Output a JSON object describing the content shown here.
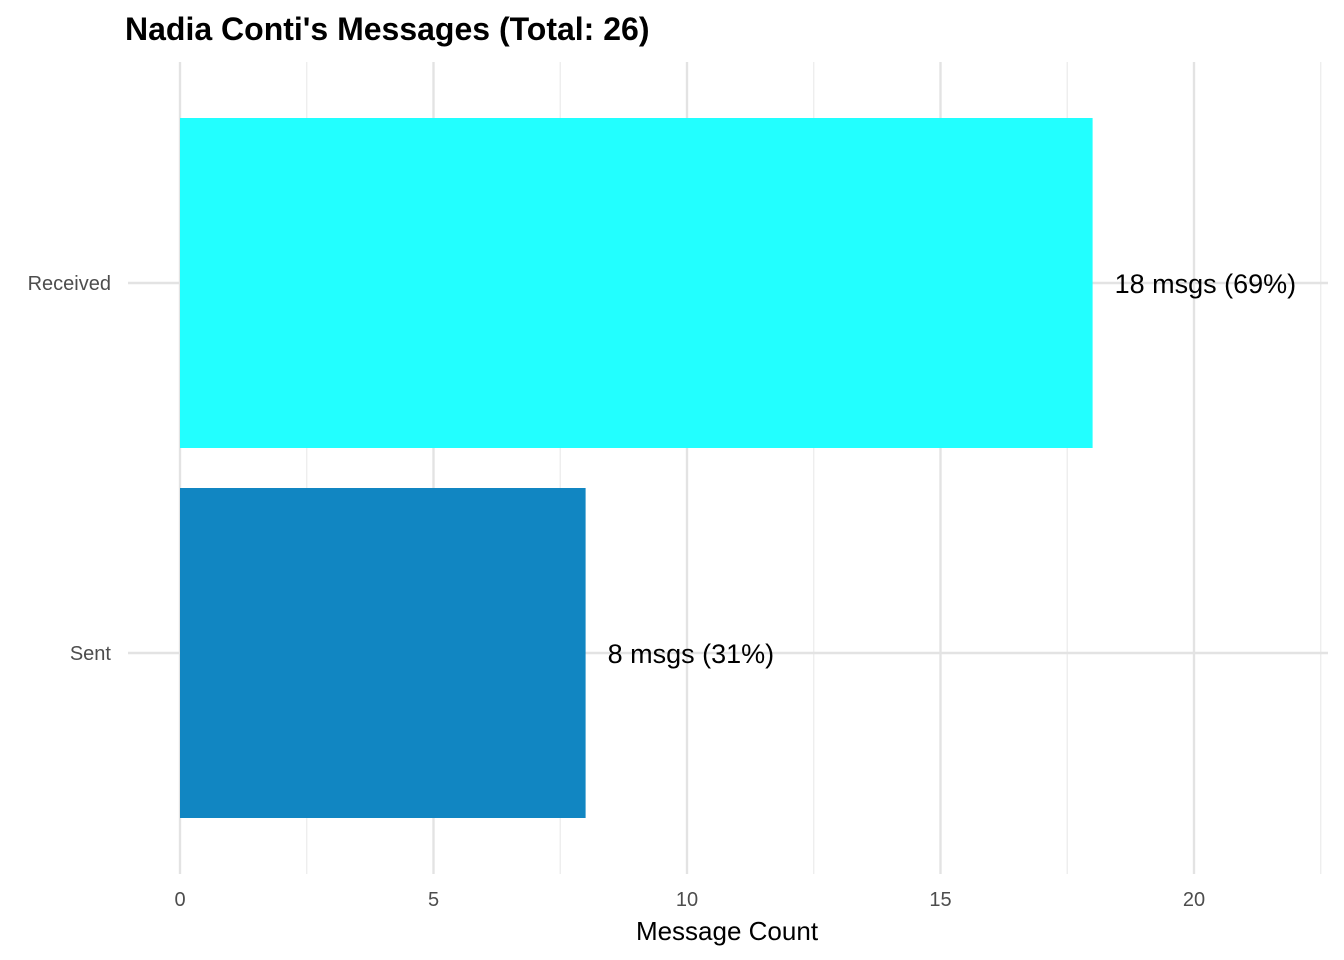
{
  "chart_data": {
    "type": "bar",
    "orientation": "horizontal",
    "title": "Nadia Conti's Messages (Total: 26)",
    "xlabel": "Message Count",
    "ylabel": "",
    "categories": [
      "Received",
      "Sent"
    ],
    "values": [
      18,
      8
    ],
    "data_labels": [
      "18 msgs (69%)",
      "8 msgs (31%)"
    ],
    "colors": [
      "#22ffff",
      "#1186c2"
    ],
    "xlim": [
      0,
      22.5
    ],
    "x_ticks": [
      0,
      5,
      10,
      15,
      20
    ],
    "grid": true,
    "legend": "none"
  }
}
